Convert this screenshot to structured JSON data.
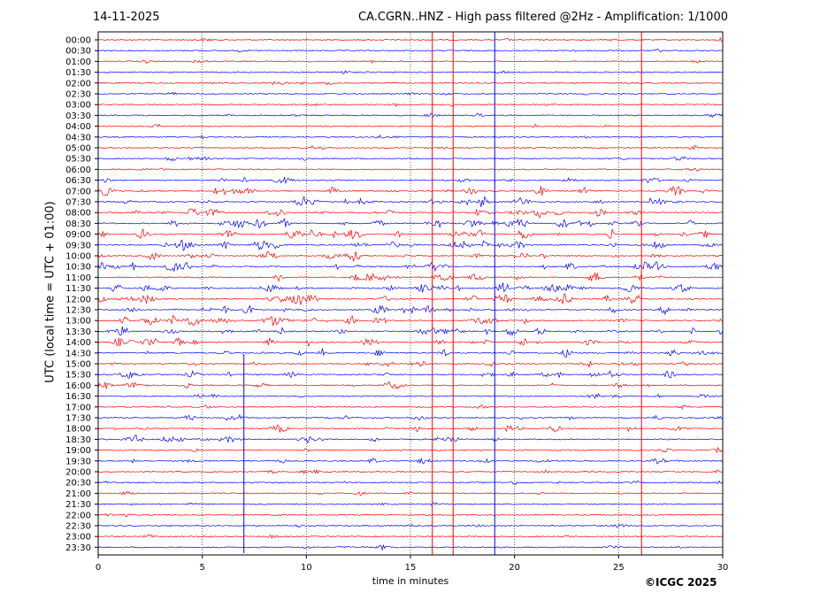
{
  "date": "14-11-2025",
  "station_title": "CA.CGRN..HNZ - High pass filtered @2Hz - Amplification: 1/1000",
  "copyright": "©ICGC 2025",
  "chart_data": {
    "type": "line",
    "xlabel": "time in minutes",
    "ylabel": "UTC (local time = UTC + 01:00)",
    "xlim": [
      0,
      30
    ],
    "xticks": [
      0,
      5,
      10,
      15,
      20,
      25,
      30
    ],
    "grid": "vertical dotted lines at each x tick",
    "trace_colors": [
      "#ff0000",
      "#0000ff"
    ],
    "rows": [
      "00:00",
      "00:30",
      "01:00",
      "01:30",
      "02:00",
      "02:30",
      "03:00",
      "03:30",
      "04:00",
      "04:30",
      "05:00",
      "05:30",
      "06:00",
      "06:30",
      "07:00",
      "07:30",
      "08:00",
      "08:30",
      "09:00",
      "09:30",
      "10:00",
      "10:30",
      "11:00",
      "11:30",
      "12:00",
      "12:30",
      "13:00",
      "13:30",
      "14:00",
      "14:30",
      "15:00",
      "15:30",
      "16:00",
      "16:30",
      "17:00",
      "17:30",
      "18:00",
      "18:30",
      "19:00",
      "19:30",
      "20:00",
      "20:30",
      "21:00",
      "21:30",
      "22:00",
      "22:30",
      "23:00",
      "23:30"
    ],
    "activity_levels": [
      0.2,
      0.2,
      0.2,
      0.25,
      0.2,
      0.2,
      0.2,
      0.3,
      0.2,
      0.2,
      0.3,
      0.3,
      0.2,
      0.5,
      1.0,
      1.0,
      1.0,
      1.0,
      1.0,
      1.0,
      1.0,
      1.0,
      0.9,
      1.0,
      1.0,
      1.0,
      1.0,
      1.0,
      0.8,
      0.8,
      0.7,
      0.7,
      0.6,
      0.4,
      0.3,
      0.6,
      0.7,
      0.8,
      0.3,
      0.5,
      0.3,
      0.3,
      0.3,
      0.2,
      0.2,
      0.3,
      0.2,
      0.3
    ],
    "vertical_spikes": [
      {
        "minute": 16.05,
        "color": "#ff0000"
      },
      {
        "minute": 17.05,
        "color": "#ff0000"
      },
      {
        "minute": 19.05,
        "color": "#0000ff"
      },
      {
        "minute": 26.1,
        "color": "#ff0000"
      },
      {
        "minute": 7.0,
        "color": "#0000ff"
      }
    ]
  }
}
